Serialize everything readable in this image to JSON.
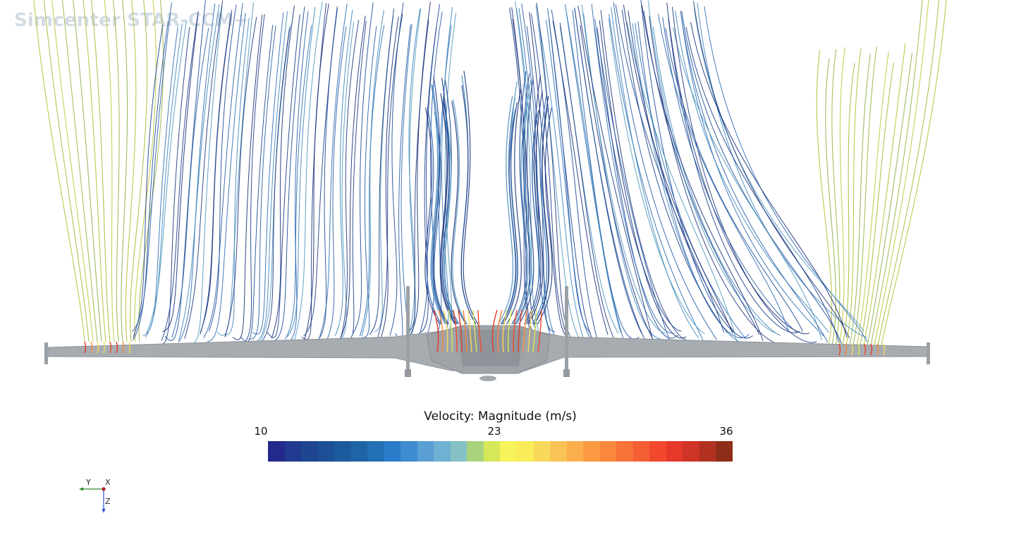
{
  "app": {
    "watermark": "Simcenter STAR-CCM+"
  },
  "scene": {
    "description_icon": "aircraft-streamlines",
    "body_color": "#a3a8ad",
    "body_edge_color": "#8e9398"
  },
  "scalar_bar": {
    "title": "Velocity: Magnitude (m/s)",
    "min_label": "10",
    "mid_label": "23",
    "max_label": "36",
    "colors": [
      "#232a8c",
      "#1f3a8f",
      "#1e4590",
      "#1c4f95",
      "#1b5a9c",
      "#1f64a6",
      "#2270b6",
      "#2b7ccb",
      "#3d8bd0",
      "#5a9fd3",
      "#6fb1d3",
      "#86c2c5",
      "#a9d37d",
      "#d6e85a",
      "#f6f45a",
      "#f8ec5a",
      "#f8d85a",
      "#f9c356",
      "#faae4c",
      "#fb9a43",
      "#fb873d",
      "#f97238",
      "#f65e33",
      "#f2492e",
      "#e5392a",
      "#cf3426",
      "#b23120",
      "#8e2e18"
    ]
  },
  "triad": {
    "x_label": "X",
    "y_label": "Y",
    "z_label": "Z",
    "x_color": "#b41e1e",
    "y_color": "#2f8a2f",
    "z_color": "#2b4fd6"
  }
}
